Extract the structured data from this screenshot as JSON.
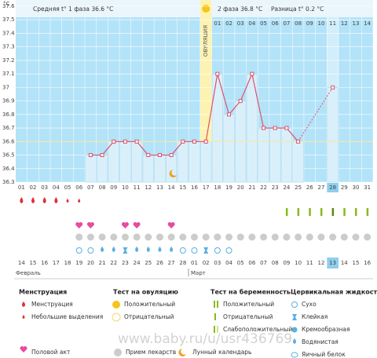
{
  "chart_data": {
    "type": "line",
    "unit": "°C",
    "header": {
      "phase1": "Средняя t° 1 фаза 36.6 °C",
      "phase2": "2 фаза 36.8 °C",
      "diff": "Разница t° 0.2 °C"
    },
    "ovulation_label": "ОВУЛЯЦИЯ",
    "categories": [
      "01",
      "02",
      "03",
      "04",
      "05",
      "06",
      "07",
      "08",
      "09",
      "10",
      "11",
      "12",
      "13",
      "14",
      "15",
      "16",
      "17",
      "18",
      "19",
      "20",
      "21",
      "22",
      "23",
      "24",
      "25",
      "26",
      "27",
      "28",
      "29",
      "30",
      "31"
    ],
    "phase2_days": [
      "01",
      "02",
      "03",
      "04",
      "05",
      "06",
      "07",
      "08",
      "09",
      "10",
      "11",
      "12",
      "13",
      "14"
    ],
    "values": [
      null,
      null,
      null,
      null,
      null,
      null,
      36.5,
      36.5,
      36.6,
      36.6,
      36.6,
      36.5,
      36.5,
      36.5,
      36.6,
      36.6,
      36.6,
      37.1,
      36.8,
      36.9,
      37.1,
      36.7,
      36.7,
      36.7,
      36.6,
      null,
      null,
      37.0,
      null,
      null,
      null
    ],
    "average": 36.6,
    "ylim": [
      36.3,
      37.6
    ],
    "yticks": [
      36.3,
      36.4,
      36.5,
      36.6,
      36.7,
      36.8,
      36.9,
      {
        "value": 37.0,
        "label": "37"
      },
      37.1,
      37.2,
      37.3,
      37.4,
      37.5,
      37.6
    ],
    "line_color": "#e0506a",
    "bar_color": "#d9f0fb",
    "grid": true,
    "dates": [
      "14",
      "15",
      "16",
      "17",
      "18",
      "19",
      "20",
      "21",
      "22",
      "23",
      "24",
      "25",
      "26",
      "27",
      "28",
      "01",
      "02",
      "03",
      "04",
      "05",
      "06",
      "07",
      "08",
      "09",
      "10",
      "11",
      "12",
      "13",
      "14",
      "15",
      "16"
    ],
    "months": [
      "Февраль",
      "Март"
    ]
  },
  "legend": {
    "menstruation": {
      "title": "Менструация",
      "items": [
        "Менструация",
        "Небольшие выделения"
      ]
    },
    "ovulation_test": {
      "title": "Тест на овуляцию",
      "items": [
        "Положительный",
        "Отрицательный"
      ]
    },
    "pregnancy_test": {
      "title": "Тест на беременность",
      "items": [
        "Положительный",
        "Отрицательный",
        "Слабоположительный"
      ]
    },
    "cervical": {
      "title": "Цервикальная жидкость",
      "items": [
        "Сухо",
        "Клейкая",
        "Кремообразная",
        "Водянистая",
        "Яичный белок"
      ]
    },
    "other": [
      "Половой акт",
      "Прием лекарств",
      "Лунный календарь"
    ]
  },
  "watermark": "www.baby.ru/u/usr436769"
}
